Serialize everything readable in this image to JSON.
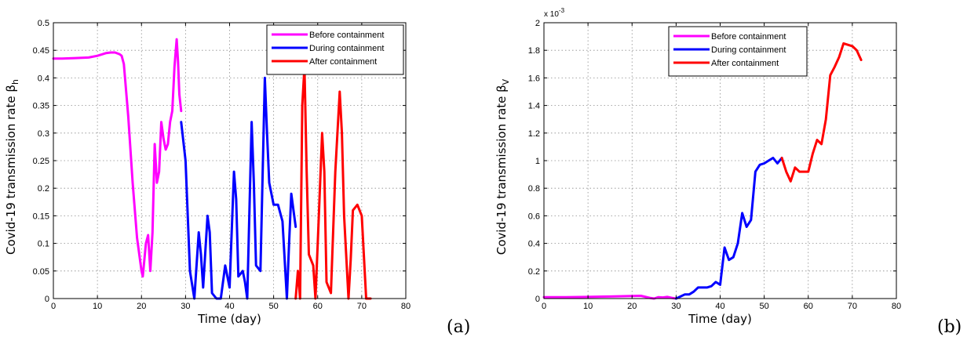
{
  "chart_data": [
    {
      "type": "line",
      "panel_label": "(a)",
      "xlabel": "Time (day)",
      "ylabel": "Covid-19 transmission rate β",
      "ylabel_sub": "h",
      "xlim": [
        0,
        80
      ],
      "ylim": [
        0,
        0.5
      ],
      "x_ticks": [
        "0",
        "10",
        "20",
        "30",
        "40",
        "50",
        "60",
        "70",
        "80"
      ],
      "y_ticks": [
        "0",
        "0.05",
        "0.1",
        "0.15",
        "0.2",
        "0.25",
        "0.3",
        "0.35",
        "0.4",
        "0.45",
        "0.5"
      ],
      "grid": true,
      "legend_position": "top-right",
      "series": [
        {
          "name": "Before containment",
          "color": "#ff00ff",
          "x": [
            0,
            2,
            5,
            8,
            10,
            12,
            13,
            14,
            15,
            15.5,
            16,
            17,
            18,
            19,
            20,
            20.3,
            21,
            21.5,
            22,
            22.5,
            23,
            23.5,
            24,
            24.5,
            25,
            25.5,
            26,
            26.5,
            27,
            27.5,
            28,
            28.3,
            28.6,
            29
          ],
          "y": [
            0.435,
            0.435,
            0.436,
            0.437,
            0.44,
            0.445,
            0.446,
            0.446,
            0.443,
            0.44,
            0.425,
            0.33,
            0.21,
            0.11,
            0.05,
            0.04,
            0.1,
            0.115,
            0.05,
            0.12,
            0.28,
            0.21,
            0.23,
            0.32,
            0.29,
            0.27,
            0.28,
            0.32,
            0.34,
            0.42,
            0.47,
            0.43,
            0.37,
            0.34
          ]
        },
        {
          "name": "During containment",
          "color": "#0000ff",
          "x": [
            29,
            30,
            31,
            32,
            33,
            33.5,
            34,
            35,
            35.5,
            36,
            37,
            38,
            39,
            40,
            41,
            41.5,
            42,
            43,
            43.5,
            44,
            45,
            45.5,
            46,
            47,
            48,
            48.5,
            49,
            50,
            51,
            52,
            53,
            53.5,
            54,
            55
          ],
          "y": [
            0.32,
            0.25,
            0.05,
            0.0,
            0.12,
            0.08,
            0.02,
            0.15,
            0.12,
            0.01,
            0.0,
            0.0,
            0.06,
            0.02,
            0.23,
            0.18,
            0.04,
            0.05,
            0.03,
            0.0,
            0.32,
            0.21,
            0.06,
            0.05,
            0.4,
            0.3,
            0.21,
            0.17,
            0.17,
            0.14,
            0.0,
            0.1,
            0.19,
            0.13
          ]
        },
        {
          "name": "After containment",
          "color": "#ff0000",
          "x": [
            55,
            55.5,
            56,
            56.5,
            57,
            57.5,
            58,
            59,
            59.5,
            60,
            61,
            61.5,
            62,
            63,
            64,
            65,
            65.5,
            66,
            67,
            67.5,
            68,
            69,
            70,
            71,
            72
          ],
          "y": [
            0.0,
            0.05,
            0.0,
            0.35,
            0.42,
            0.23,
            0.08,
            0.06,
            0.0,
            0.1,
            0.3,
            0.23,
            0.03,
            0.01,
            0.23,
            0.375,
            0.3,
            0.15,
            0.0,
            0.07,
            0.16,
            0.17,
            0.15,
            0.0,
            0.0
          ]
        }
      ]
    },
    {
      "type": "line",
      "panel_label": "(b)",
      "xlabel": "Time (day)",
      "ylabel": "Covid-19 transmission rate β",
      "ylabel_sub": "V",
      "y_exponent_base": "x 10",
      "y_exponent_power": "-3",
      "xlim": [
        0,
        80
      ],
      "ylim": [
        0,
        2
      ],
      "x_ticks": [
        "0",
        "10",
        "20",
        "30",
        "40",
        "50",
        "60",
        "70",
        "80"
      ],
      "y_ticks": [
        "0",
        "0.2",
        "0.4",
        "0.6",
        "0.8",
        "1",
        "1.2",
        "1.4",
        "1.6",
        "1.8",
        "2"
      ],
      "grid": true,
      "legend_position": "top-right",
      "series": [
        {
          "name": "Before containment",
          "color": "#ff00ff",
          "x": [
            0,
            5,
            10,
            15,
            20,
            22,
            24,
            25,
            26,
            27,
            28,
            29,
            30
          ],
          "y": [
            0.01,
            0.01,
            0.012,
            0.015,
            0.018,
            0.02,
            0.005,
            0.0,
            0.01,
            0.008,
            0.012,
            0.005,
            0.0
          ]
        },
        {
          "name": "During containment",
          "color": "#0000ff",
          "x": [
            30,
            32,
            33,
            34,
            35,
            36,
            37,
            38,
            39,
            40,
            41,
            42,
            43,
            44,
            45,
            46,
            47,
            48,
            49,
            50,
            51,
            52,
            53,
            54
          ],
          "y": [
            0.0,
            0.03,
            0.03,
            0.05,
            0.08,
            0.08,
            0.08,
            0.09,
            0.12,
            0.1,
            0.37,
            0.28,
            0.3,
            0.4,
            0.62,
            0.52,
            0.57,
            0.92,
            0.97,
            0.98,
            1.0,
            1.02,
            0.98,
            1.02
          ]
        },
        {
          "name": "After containment",
          "color": "#ff0000",
          "x": [
            54,
            55,
            56,
            57,
            58,
            59,
            60,
            61,
            62,
            63,
            64,
            65,
            66,
            67,
            68,
            69,
            70,
            71,
            72
          ],
          "y": [
            1.02,
            0.92,
            0.85,
            0.95,
            0.92,
            0.92,
            0.92,
            1.05,
            1.15,
            1.12,
            1.3,
            1.62,
            1.68,
            1.75,
            1.85,
            1.84,
            1.83,
            1.8,
            1.73
          ]
        }
      ]
    }
  ]
}
